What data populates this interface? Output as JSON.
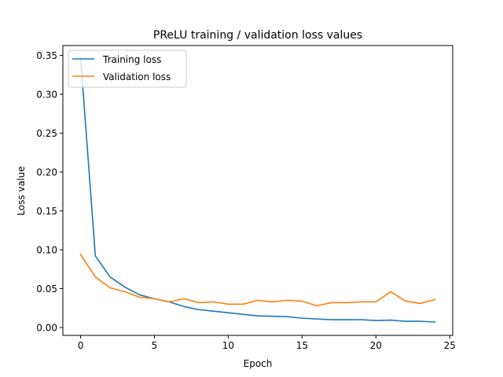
{
  "chart_data": {
    "type": "line",
    "title": "PReLU training / validation loss values",
    "xlabel": "Epoch",
    "ylabel": "Loss value",
    "xlim": [
      -1.2,
      25.2
    ],
    "ylim": [
      -0.0101,
      0.3627
    ],
    "xticks": [
      0,
      5,
      10,
      15,
      20,
      25
    ],
    "xtick_labels": [
      "0",
      "5",
      "10",
      "15",
      "20",
      "25"
    ],
    "yticks": [
      0.0,
      0.05,
      0.1,
      0.15,
      0.2,
      0.25,
      0.3,
      0.35
    ],
    "ytick_labels": [
      "0.00",
      "0.05",
      "0.10",
      "0.15",
      "0.20",
      "0.25",
      "0.30",
      "0.35"
    ],
    "grid": false,
    "legend_position": "top-left",
    "x": [
      0,
      1,
      2,
      3,
      4,
      5,
      6,
      7,
      8,
      9,
      10,
      11,
      12,
      13,
      14,
      15,
      16,
      17,
      18,
      19,
      20,
      21,
      22,
      23,
      24
    ],
    "series": [
      {
        "name": "Training loss",
        "color": "#1f77b4",
        "values": [
          0.347,
          0.092,
          0.065,
          0.052,
          0.042,
          0.037,
          0.033,
          0.027,
          0.023,
          0.021,
          0.019,
          0.017,
          0.015,
          0.0145,
          0.014,
          0.012,
          0.011,
          0.01,
          0.01,
          0.01,
          0.009,
          0.0095,
          0.008,
          0.008,
          0.007
        ]
      },
      {
        "name": "Validation loss",
        "color": "#ff7f0e",
        "values": [
          0.094,
          0.065,
          0.051,
          0.046,
          0.039,
          0.037,
          0.033,
          0.037,
          0.032,
          0.033,
          0.03,
          0.03,
          0.035,
          0.033,
          0.035,
          0.034,
          0.028,
          0.032,
          0.032,
          0.033,
          0.033,
          0.046,
          0.034,
          0.031,
          0.036
        ]
      }
    ]
  }
}
